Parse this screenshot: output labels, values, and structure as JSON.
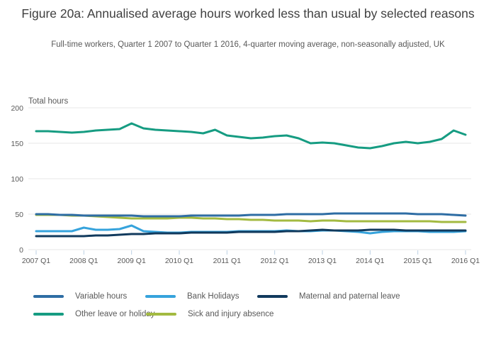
{
  "header": {
    "title": "Figure 20a: Annualised average hours worked less than usual by selected reasons",
    "subtitle": "Full-time workers, Quarter 1 2007 to Quarter 1 2016, 4-quarter moving average, non-seasonally adjusted, UK"
  },
  "chart_data": {
    "type": "line",
    "title": "Figure 20a: Annualised average hours worked less than usual by selected reasons",
    "subtitle": "Full-time workers, Quarter 1 2007 to Quarter 1 2016, 4-quarter moving average, non-seasonally adjusted, UK",
    "y_axis_title": "Total hours",
    "y_ticks": [
      0,
      50,
      100,
      150,
      200
    ],
    "ylim": [
      0,
      200
    ],
    "grid": true,
    "legend_position": "bottom",
    "x_tick_labels": [
      "2007 Q1",
      "2008 Q1",
      "2009 Q1",
      "2010 Q1",
      "2011 Q1",
      "2012 Q1",
      "2013 Q1",
      "2014 Q1",
      "2015 Q1",
      "2016 Q1"
    ],
    "x_frequency": "quarterly",
    "x_points": 37,
    "series": [
      {
        "name": "Variable hours",
        "color": "#2e6da4",
        "values": [
          50,
          50,
          49,
          49,
          48,
          48,
          48,
          48,
          48,
          47,
          47,
          47,
          47,
          48,
          48,
          48,
          48,
          48,
          49,
          49,
          49,
          50,
          50,
          50,
          50,
          51,
          51,
          51,
          51,
          51,
          51,
          51,
          50,
          50,
          50,
          49,
          48
        ]
      },
      {
        "name": "Bank Holidays",
        "color": "#36a3dc",
        "values": [
          26,
          26,
          26,
          26,
          31,
          28,
          28,
          29,
          34,
          26,
          25,
          24,
          24,
          25,
          25,
          25,
          25,
          26,
          26,
          26,
          26,
          27,
          26,
          26,
          27,
          27,
          26,
          25,
          23,
          25,
          26,
          26,
          26,
          25,
          25,
          25,
          26
        ]
      },
      {
        "name": "Maternal and paternal leave",
        "color": "#113a5d",
        "values": [
          19,
          19,
          19,
          19,
          19,
          20,
          20,
          21,
          22,
          22,
          23,
          23,
          23,
          24,
          24,
          24,
          24,
          25,
          25,
          25,
          25,
          26,
          26,
          27,
          28,
          27,
          27,
          27,
          28,
          28,
          28,
          27,
          27,
          27,
          27,
          27,
          27
        ]
      },
      {
        "name": "Other leave or holiday",
        "color": "#169c82",
        "values": [
          167,
          167,
          166,
          165,
          166,
          168,
          169,
          170,
          178,
          171,
          169,
          168,
          167,
          166,
          164,
          169,
          161,
          159,
          157,
          158,
          160,
          161,
          157,
          150,
          151,
          150,
          147,
          144,
          143,
          146,
          150,
          152,
          150,
          152,
          156,
          168,
          162
        ]
      },
      {
        "name": "Sick and injury absence",
        "color": "#a3ba41",
        "values": [
          49,
          49,
          49,
          48,
          48,
          47,
          46,
          45,
          44,
          44,
          44,
          44,
          45,
          45,
          44,
          44,
          43,
          43,
          42,
          42,
          41,
          41,
          41,
          40,
          41,
          41,
          40,
          40,
          40,
          40,
          40,
          40,
          40,
          40,
          39,
          39,
          39
        ]
      }
    ]
  },
  "colors": {
    "gridline": "#e7e7e7",
    "tick_mark": "#bcd0e4",
    "axis_text": "#595959",
    "title_text": "#3f3f3f"
  }
}
